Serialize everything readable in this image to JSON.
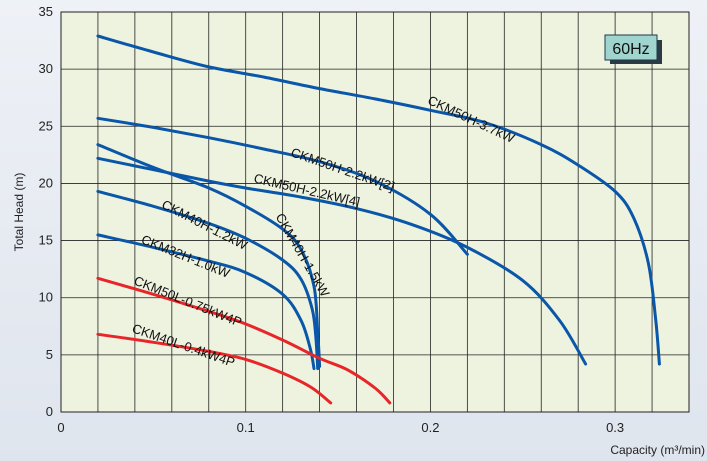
{
  "chart_data": {
    "type": "line",
    "badge": "60Hz",
    "xlabel": "Capacity (m³/min)",
    "ylabel": "Total Head (m)",
    "xlim": [
      0,
      0.34
    ],
    "ylim": [
      0,
      35
    ],
    "grid": true,
    "x_ticks": [
      "0",
      "0.1",
      "0.2",
      "0.3"
    ],
    "y_ticks": [
      "0",
      "5",
      "10",
      "15",
      "20",
      "25",
      "30",
      "35"
    ],
    "colors": {
      "blue": "#0a56a8",
      "red": "#e8262a",
      "plot_bg": "#eef3df",
      "grid": "#222222",
      "badge_bg": "#9fd4cf"
    },
    "series": [
      {
        "name": "CKM50H-3.7kW",
        "color": "blue",
        "points": [
          [
            0.02,
            32.9
          ],
          [
            0.05,
            31.5
          ],
          [
            0.08,
            30.2
          ],
          [
            0.11,
            29.3
          ],
          [
            0.14,
            28.3
          ],
          [
            0.17,
            27.4
          ],
          [
            0.2,
            26.4
          ],
          [
            0.23,
            25.3
          ],
          [
            0.26,
            23.4
          ],
          [
            0.28,
            21.6
          ],
          [
            0.3,
            19.3
          ],
          [
            0.31,
            17.0
          ],
          [
            0.318,
            13.0
          ],
          [
            0.322,
            8.0
          ],
          [
            0.324,
            4.2
          ]
        ]
      },
      {
        "name": "CKM50H-2.2kW[2]",
        "color": "blue",
        "points": [
          [
            0.02,
            25.7
          ],
          [
            0.05,
            24.9
          ],
          [
            0.08,
            24.0
          ],
          [
            0.11,
            23.0
          ],
          [
            0.14,
            21.9
          ],
          [
            0.17,
            20.2
          ],
          [
            0.2,
            17.3
          ],
          [
            0.22,
            13.8
          ]
        ]
      },
      {
        "name": "CKM50H-2.2kW[4]",
        "color": "blue",
        "points": [
          [
            0.02,
            22.2
          ],
          [
            0.05,
            21.2
          ],
          [
            0.08,
            20.2
          ],
          [
            0.1,
            19.6
          ],
          [
            0.13,
            18.8
          ],
          [
            0.16,
            17.8
          ],
          [
            0.19,
            16.4
          ],
          [
            0.22,
            14.4
          ],
          [
            0.25,
            11.5
          ],
          [
            0.27,
            8.0
          ],
          [
            0.284,
            4.2
          ]
        ]
      },
      {
        "name": "CKM40H-1.5kW",
        "color": "blue",
        "points": [
          [
            0.02,
            23.4
          ],
          [
            0.05,
            21.4
          ],
          [
            0.08,
            19.6
          ],
          [
            0.1,
            18.0
          ],
          [
            0.12,
            16.0
          ],
          [
            0.13,
            14.2
          ],
          [
            0.137,
            11.0
          ],
          [
            0.139,
            7.0
          ],
          [
            0.14,
            4.0
          ]
        ]
      },
      {
        "name": "CKM40H-1.2kW",
        "color": "blue",
        "points": [
          [
            0.02,
            19.3
          ],
          [
            0.05,
            18.0
          ],
          [
            0.08,
            16.5
          ],
          [
            0.1,
            15.2
          ],
          [
            0.12,
            13.3
          ],
          [
            0.13,
            11.6
          ],
          [
            0.136,
            9.0
          ],
          [
            0.138,
            6.5
          ],
          [
            0.139,
            3.8
          ]
        ]
      },
      {
        "name": "CKM32H-1.0kW",
        "color": "blue",
        "points": [
          [
            0.02,
            15.5
          ],
          [
            0.05,
            14.4
          ],
          [
            0.08,
            13.2
          ],
          [
            0.1,
            12.2
          ],
          [
            0.12,
            10.3
          ],
          [
            0.13,
            8.0
          ],
          [
            0.135,
            5.5
          ],
          [
            0.137,
            3.8
          ]
        ]
      },
      {
        "name": "CKM50L-0.75kW4P",
        "color": "red",
        "points": [
          [
            0.02,
            11.7
          ],
          [
            0.05,
            10.3
          ],
          [
            0.08,
            8.8
          ],
          [
            0.1,
            7.7
          ],
          [
            0.12,
            6.3
          ],
          [
            0.14,
            4.7
          ],
          [
            0.155,
            3.7
          ],
          [
            0.17,
            2.1
          ],
          [
            0.178,
            0.8
          ]
        ]
      },
      {
        "name": "CKM40L-0.4kW4P",
        "color": "red",
        "points": [
          [
            0.02,
            6.8
          ],
          [
            0.05,
            6.1
          ],
          [
            0.08,
            5.3
          ],
          [
            0.1,
            4.6
          ],
          [
            0.12,
            3.4
          ],
          [
            0.135,
            2.2
          ],
          [
            0.146,
            0.8
          ]
        ]
      }
    ],
    "labels": [
      {
        "text": "CKM50H-3.7kW",
        "at": [
          0.198,
          27.0
        ],
        "angle": 25
      },
      {
        "text": "CKM50H-2.2kW[2]",
        "at": [
          0.124,
          22.4
        ],
        "angle": 19
      },
      {
        "text": "CKM50H-2.2kW[4]",
        "at": [
          0.104,
          20.1
        ],
        "angle": 13
      },
      {
        "text": "CKM40H-1.2kW",
        "at": [
          0.054,
          17.9
        ],
        "angle": 27
      },
      {
        "text": "CKM40H-1.5kW",
        "at": [
          0.116,
          17.1
        ],
        "angle": 60
      },
      {
        "text": "CKM32H-1.0kW",
        "at": [
          0.043,
          14.8
        ],
        "angle": 22
      },
      {
        "text": "CKM50L-0.75kW4P",
        "at": [
          0.039,
          11.2
        ],
        "angle": 22
      },
      {
        "text": "CKM40L-0.4kW4P",
        "at": [
          0.038,
          7.0
        ],
        "angle": 19
      }
    ]
  }
}
